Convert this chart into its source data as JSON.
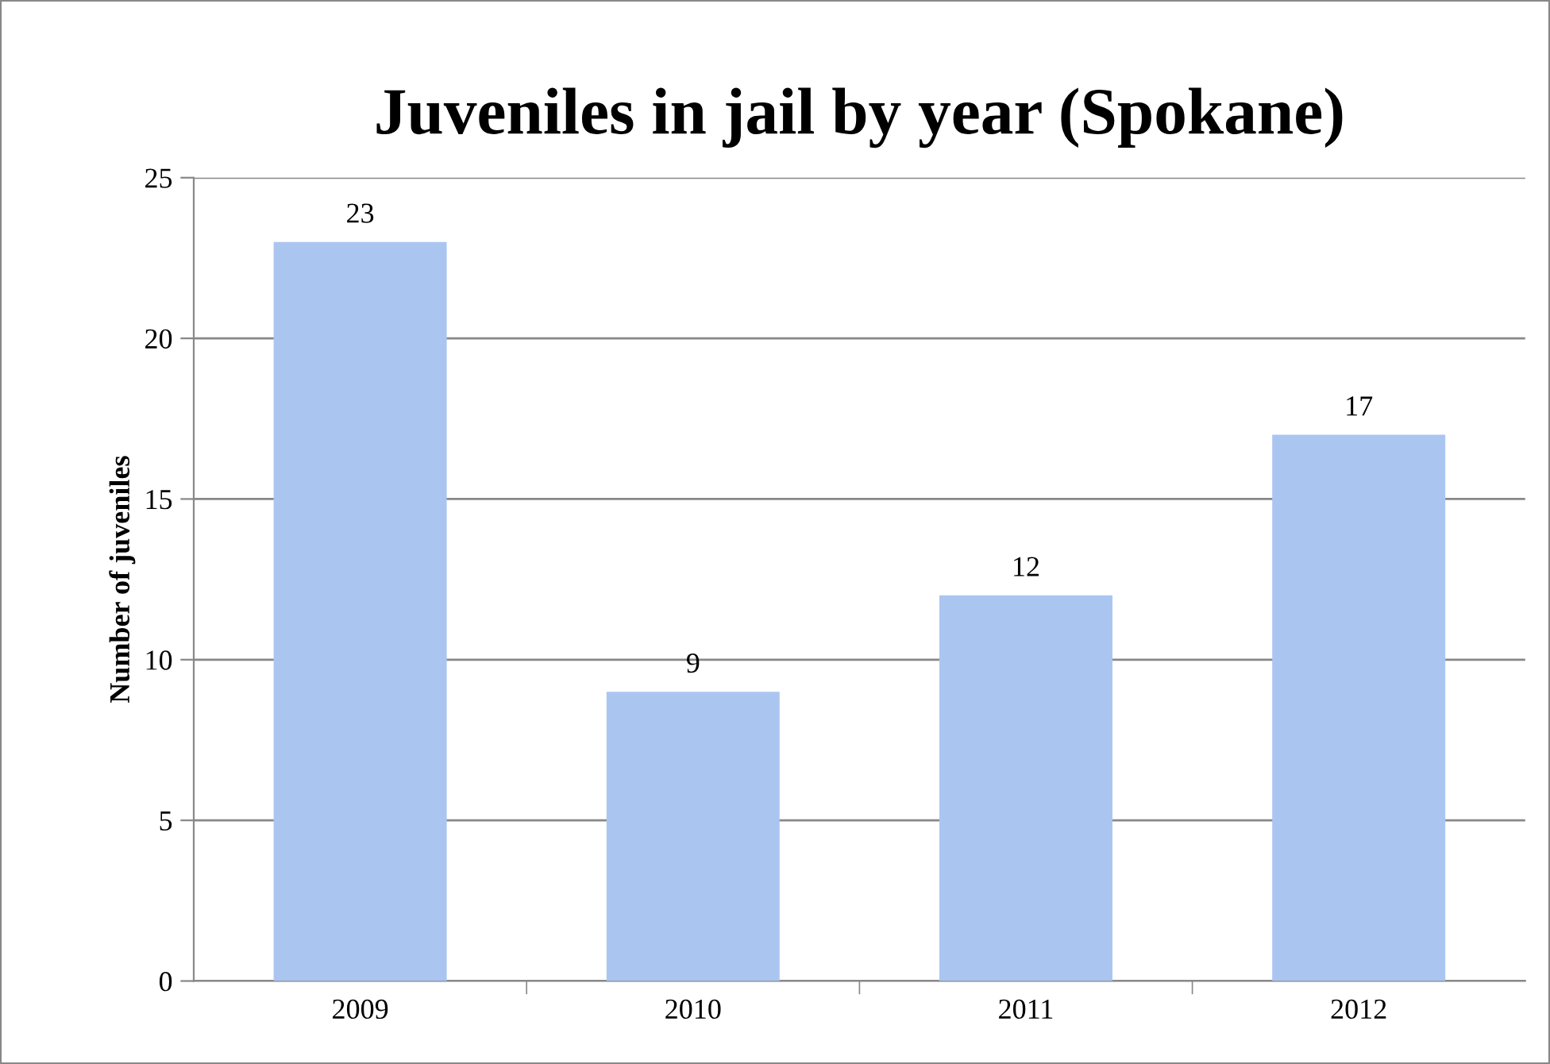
{
  "chart_data": {
    "type": "bar",
    "title": "Juveniles in jail by year (Spokane)",
    "ylabel": "Number of juveniles",
    "categories": [
      "2009",
      "2010",
      "2011",
      "2012"
    ],
    "values": [
      23,
      9,
      12,
      17
    ],
    "color": "#aac6f0",
    "ylim": [
      0,
      25
    ],
    "yticks": [
      0,
      5,
      10,
      15,
      20,
      25
    ],
    "grid": "y",
    "data_labels": true,
    "legend": false
  }
}
